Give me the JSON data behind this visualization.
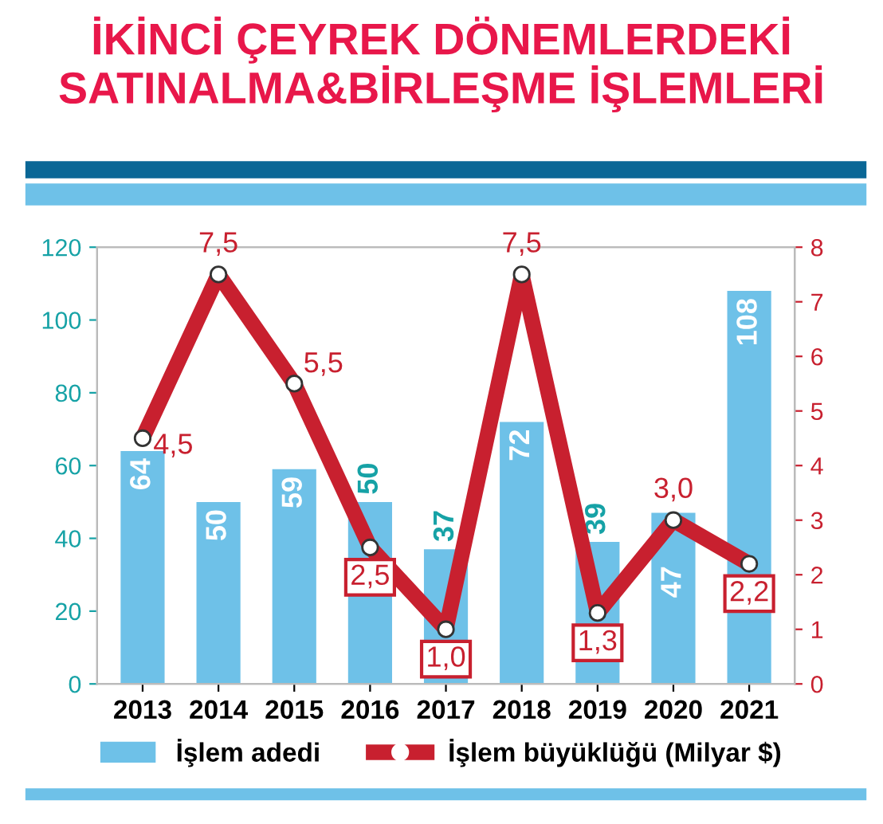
{
  "chart_data": {
    "type": "bar",
    "title": "İKİNCİ ÇEYREK DÖNEMLERDEKİ\nSATINALMA&BİRLEŞME İŞLEMLERİ",
    "categories": [
      "2013",
      "2014",
      "2015",
      "2016",
      "2017",
      "2018",
      "2019",
      "2020",
      "2021"
    ],
    "series": [
      {
        "name": "İşlem adedi",
        "color": "#6ec1e8",
        "values": [
          64,
          50,
          59,
          50,
          37,
          72,
          39,
          47,
          108
        ],
        "value_labels": [
          "64",
          "50",
          "59",
          "50",
          "37",
          "72",
          "39",
          "47",
          "108"
        ]
      },
      {
        "name": "İşlem büyüklüğü (Milyar $)",
        "type": "line",
        "axis": "y2",
        "color": "#c8202f",
        "marker": "circle",
        "values": [
          4.5,
          7.5,
          5.5,
          2.5,
          1.0,
          7.5,
          1.3,
          3.0,
          2.2
        ],
        "value_labels": [
          "4,5",
          "7,5",
          "5,5",
          "2,5",
          "1,0",
          "7,5",
          "1,3",
          "3,0",
          "2,2"
        ]
      }
    ],
    "ylim": [
      0,
      120
    ],
    "yticks": [
      0,
      20,
      40,
      60,
      80,
      100,
      120
    ],
    "y2lim": [
      0,
      8
    ],
    "y2ticks": [
      0,
      1,
      2,
      3,
      4,
      5,
      6,
      7,
      8
    ],
    "grid": false,
    "legend": "bottom"
  }
}
